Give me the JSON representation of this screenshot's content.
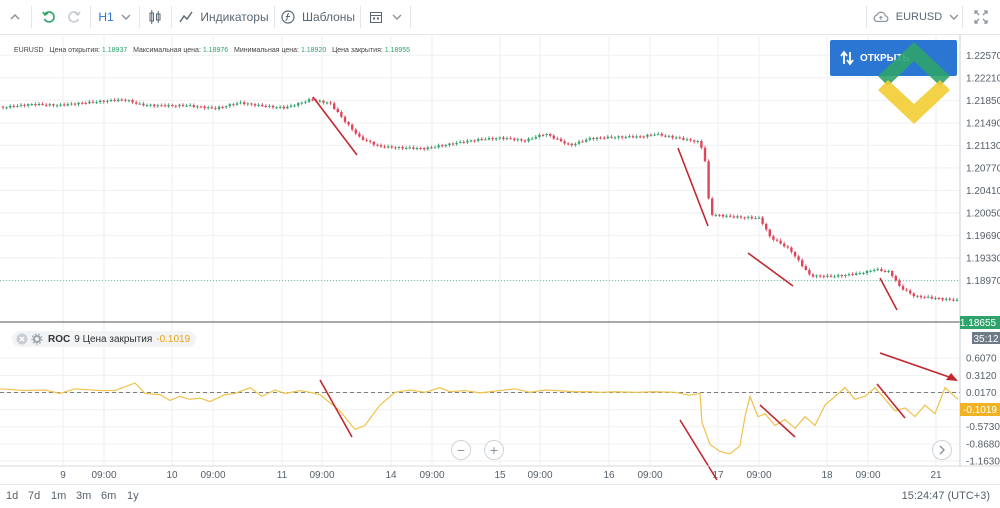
{
  "toolbar": {
    "timeframe": "H1",
    "indicators_label": "Индикаторы",
    "templates_label": "Шаблоны",
    "symbol": "EURUSD"
  },
  "legend": {
    "symbol": "EURUSD",
    "open_label": "Цена открытия:",
    "open_value": "1.18937",
    "high_label": "Максимальная цена:",
    "high_value": "1.18976",
    "low_label": "Минимальная цена:",
    "low_value": "1.18920",
    "close_label": "Цена закрытия:",
    "close_value": "1.18955"
  },
  "open_button_label": "ОТКРЫТЬ",
  "indicator": {
    "name": "ROC",
    "params": "9 Цена закрытия",
    "value": "-0.1019"
  },
  "current_price": "1.18655",
  "countdown": "35:12",
  "time_ranges": [
    "1d",
    "7d",
    "1m",
    "3m",
    "6m",
    "1y"
  ],
  "clock": "15:24:47 (UTC+3)",
  "colors": {
    "up": "#2ea36b",
    "down": "#e0455b",
    "roc": "#f0c24a",
    "arrows": "#c0292f",
    "price_tag": "#2ea36b",
    "roc_tag": "#f0b323",
    "button": "#2a76d2"
  },
  "chart_data": [
    {
      "type": "candlestick",
      "symbol": "EURUSD",
      "y_ticks": [
        "1.22570",
        "1.22210",
        "1.21850",
        "1.21490",
        "1.21130",
        "1.20770",
        "1.20410",
        "1.20050",
        "1.19690",
        "1.19330",
        "1.18970"
      ],
      "ylim": [
        1.1858,
        1.2275
      ],
      "x_ticks": [
        "9",
        "09:00",
        "10",
        "09:00",
        "11",
        "09:00",
        "14",
        "09:00",
        "15",
        "09:00",
        "16",
        "09:00",
        "17",
        "09:00",
        "18",
        "09:00",
        "21"
      ],
      "close_path": [
        [
          0,
          1.2175
        ],
        [
          30,
          1.218
        ],
        [
          60,
          1.2176
        ],
        [
          90,
          1.218
        ],
        [
          125,
          1.2187
        ],
        [
          140,
          1.218
        ],
        [
          160,
          1.2178
        ],
        [
          185,
          1.2177
        ],
        [
          215,
          1.217
        ],
        [
          240,
          1.218
        ],
        [
          260,
          1.2177
        ],
        [
          285,
          1.2175
        ],
        [
          310,
          1.2187
        ],
        [
          330,
          1.218
        ],
        [
          345,
          1.215
        ],
        [
          360,
          1.2123
        ],
        [
          380,
          1.211
        ],
        [
          405,
          1.211
        ],
        [
          425,
          1.211
        ],
        [
          445,
          1.2115
        ],
        [
          470,
          1.212
        ],
        [
          500,
          1.2123
        ],
        [
          525,
          1.212
        ],
        [
          545,
          1.2133
        ],
        [
          570,
          1.2115
        ],
        [
          590,
          1.2125
        ],
        [
          615,
          1.2125
        ],
        [
          640,
          1.2125
        ],
        [
          655,
          1.213
        ],
        [
          680,
          1.2125
        ],
        [
          700,
          1.212
        ],
        [
          705,
          1.209
        ],
        [
          710,
          1.2005
        ],
        [
          730,
          1.2
        ],
        [
          760,
          1.1995
        ],
        [
          770,
          1.1965
        ],
        [
          790,
          1.1945
        ],
        [
          810,
          1.1905
        ],
        [
          830,
          1.1905
        ],
        [
          860,
          1.191
        ],
        [
          875,
          1.1915
        ],
        [
          890,
          1.191
        ],
        [
          900,
          1.1885
        ],
        [
          915,
          1.187
        ],
        [
          935,
          1.1868
        ],
        [
          958,
          1.1866
        ]
      ]
    },
    {
      "type": "line",
      "name": "ROC",
      "y_ticks": [
        "0.6070",
        "0.3120",
        "0.0170",
        "-0.2780",
        "-0.5730",
        "-0.8680",
        "-1.1630"
      ],
      "ylim": [
        -1.25,
        0.68
      ],
      "zero_line": 0.017,
      "x": [
        0,
        25,
        45,
        60,
        75,
        100,
        115,
        135,
        145,
        160,
        170,
        180,
        190,
        200,
        210,
        225,
        235,
        250,
        262,
        275,
        285,
        300,
        310,
        320,
        340,
        355,
        365,
        380,
        395,
        410,
        425,
        440,
        450,
        465,
        480,
        500,
        515,
        530,
        545,
        555,
        565,
        575,
        590,
        600,
        615,
        635,
        655,
        675,
        690,
        700,
        702,
        710,
        720,
        730,
        740,
        745,
        750,
        758,
        765,
        775,
        785,
        795,
        805,
        815,
        825,
        835,
        845,
        855,
        865,
        875,
        885,
        895,
        905,
        915,
        925,
        935,
        945,
        958
      ],
      "values": [
        0.08,
        0.05,
        0.06,
        0.0,
        0.08,
        0.05,
        0.05,
        0.18,
        0.0,
        -0.02,
        -0.12,
        -0.05,
        -0.1,
        -0.08,
        -0.14,
        -0.02,
        0.0,
        0.1,
        -0.05,
        0.06,
        0.0,
        0.05,
        0.02,
        -0.02,
        -0.3,
        -0.62,
        -0.55,
        -0.2,
        0.02,
        0.06,
        0.02,
        0.1,
        0.03,
        0.05,
        0.01,
        0.05,
        0.08,
        0.02,
        0.06,
        0.05,
        0.04,
        0.03,
        0.03,
        0.02,
        0.03,
        0.02,
        0.03,
        0.02,
        -0.03,
        0.0,
        -0.5,
        -0.88,
        -1.0,
        -1.04,
        -0.9,
        -0.4,
        -0.05,
        -0.4,
        -0.35,
        -0.55,
        -0.45,
        -0.6,
        -0.4,
        -0.55,
        -0.2,
        -0.05,
        0.1,
        -0.1,
        -0.05,
        0.1,
        -0.1,
        -0.3,
        -0.25,
        -0.4,
        -0.2,
        -0.35,
        0.1,
        -0.1
      ]
    }
  ]
}
